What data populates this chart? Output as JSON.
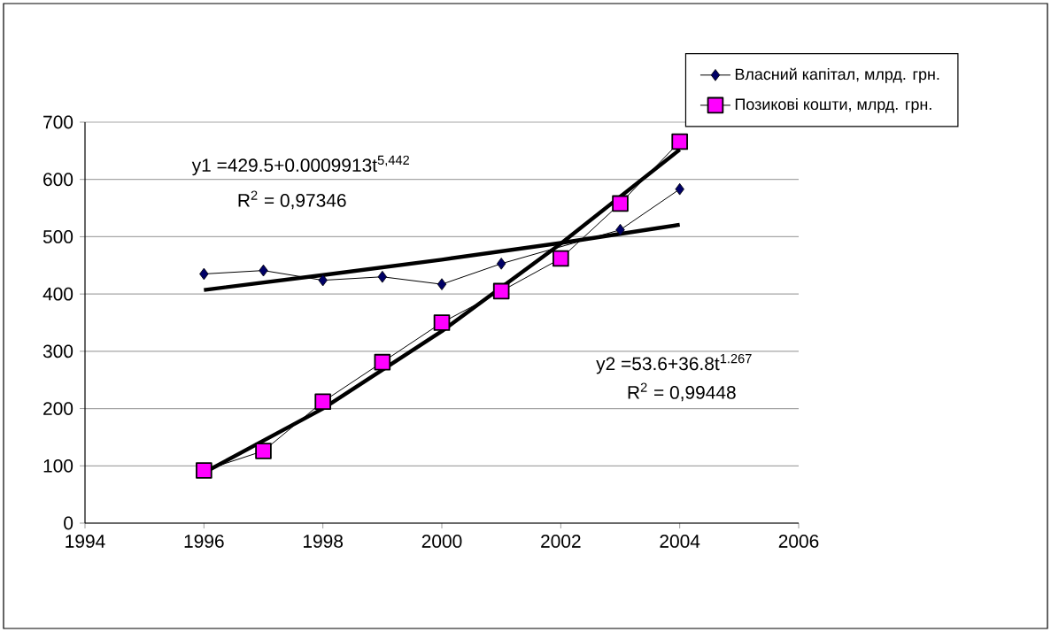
{
  "chart_data": {
    "type": "line",
    "x": [
      1996,
      1997,
      1998,
      1999,
      2000,
      2001,
      2002,
      2003,
      2004
    ],
    "series": [
      {
        "name": "Власний капітал, млрд. грн.",
        "color": "#000066",
        "marker": "diamond",
        "values": [
          435,
          441,
          424,
          430,
          417,
          453,
          null,
          512,
          583
        ]
      },
      {
        "name": "Позикові кошти, млрд. грн.",
        "color": "#ff00ff",
        "marker": "square",
        "values": [
          92,
          126,
          212,
          281,
          350,
          405,
          462,
          558,
          666
        ]
      },
      {
        "type": "line",
        "color": "#000000",
        "marker": "none",
        "x": [
          1996,
          1998,
          2000,
          2002,
          2004
        ],
        "values": [
          407,
          433,
          460,
          489,
          521
        ]
      },
      {
        "type": "line",
        "color": "#000000",
        "marker": "none",
        "x": [
          1996,
          1998,
          2000,
          2002,
          2004
        ],
        "values": [
          88,
          200,
          335,
          488,
          652
        ]
      }
    ],
    "annotations": [
      "y1 =429.5+0.0009913t$^{5,442}$",
      "R$^{2}$ = 0,97346",
      "y2 =53.6+36.8t$^{1.267}$",
      "R$^{2}$ = 0,99448"
    ],
    "xlim": [
      1994,
      2006
    ],
    "xticks": [
      1994,
      1996,
      1998,
      2000,
      2002,
      2004,
      2006
    ],
    "ylim": [
      0,
      700
    ],
    "yticks": [
      0,
      100,
      200,
      300,
      400,
      500,
      600,
      700
    ],
    "grid": "y",
    "legend": "top right"
  }
}
